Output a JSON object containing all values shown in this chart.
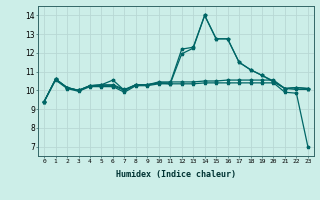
{
  "xlabel": "Humidex (Indice chaleur)",
  "bg_color": "#cceee8",
  "grid_color": "#b8d8d4",
  "line_color": "#006666",
  "xlim": [
    -0.5,
    23.5
  ],
  "ylim": [
    6.5,
    14.5
  ],
  "xticks": [
    0,
    1,
    2,
    3,
    4,
    5,
    6,
    7,
    8,
    9,
    10,
    11,
    12,
    13,
    14,
    15,
    16,
    17,
    18,
    19,
    20,
    21,
    22,
    23
  ],
  "yticks": [
    7,
    8,
    9,
    10,
    11,
    12,
    13,
    14
  ],
  "line1_x": [
    0,
    1,
    2,
    3,
    4,
    5,
    6,
    7,
    8,
    9,
    10,
    11,
    12,
    13,
    14,
    15,
    16,
    17,
    18,
    19,
    20,
    21,
    22,
    23
  ],
  "line1_y": [
    9.4,
    10.6,
    10.15,
    10.0,
    10.25,
    10.25,
    10.25,
    10.0,
    10.3,
    10.3,
    10.4,
    10.4,
    12.2,
    12.3,
    14.0,
    12.75,
    12.75,
    11.5,
    11.1,
    10.8,
    10.45,
    10.1,
    10.15,
    10.1
  ],
  "line2_x": [
    0,
    1,
    2,
    3,
    4,
    5,
    6,
    7,
    8,
    9,
    10,
    11,
    12,
    13,
    14,
    15,
    16,
    17,
    18,
    19,
    20,
    21,
    22,
    23
  ],
  "line2_y": [
    9.4,
    10.6,
    10.15,
    10.0,
    10.25,
    10.3,
    10.3,
    10.05,
    10.3,
    10.3,
    10.4,
    10.35,
    11.95,
    12.25,
    14.0,
    12.75,
    12.75,
    11.5,
    11.1,
    10.8,
    10.5,
    10.1,
    10.15,
    10.1
  ],
  "line3_x": [
    0,
    1,
    2,
    3,
    4,
    5,
    6,
    7,
    8,
    9,
    10,
    11,
    12,
    13,
    14,
    15,
    16,
    17,
    18,
    19,
    20,
    21,
    22,
    23
  ],
  "line3_y": [
    9.4,
    10.6,
    10.15,
    10.0,
    10.25,
    10.3,
    10.55,
    10.0,
    10.3,
    10.3,
    10.45,
    10.45,
    10.45,
    10.45,
    10.5,
    10.5,
    10.55,
    10.55,
    10.55,
    10.55,
    10.55,
    10.1,
    10.05,
    10.05
  ],
  "line4_x": [
    0,
    1,
    2,
    3,
    4,
    5,
    6,
    7,
    8,
    9,
    10,
    11,
    12,
    13,
    14,
    15,
    16,
    17,
    18,
    19,
    20,
    21,
    22,
    23
  ],
  "line4_y": [
    9.4,
    10.55,
    10.1,
    9.95,
    10.2,
    10.2,
    10.2,
    9.9,
    10.25,
    10.25,
    10.35,
    10.35,
    10.35,
    10.35,
    10.4,
    10.4,
    10.4,
    10.4,
    10.4,
    10.4,
    10.4,
    9.9,
    9.85,
    7.0
  ]
}
